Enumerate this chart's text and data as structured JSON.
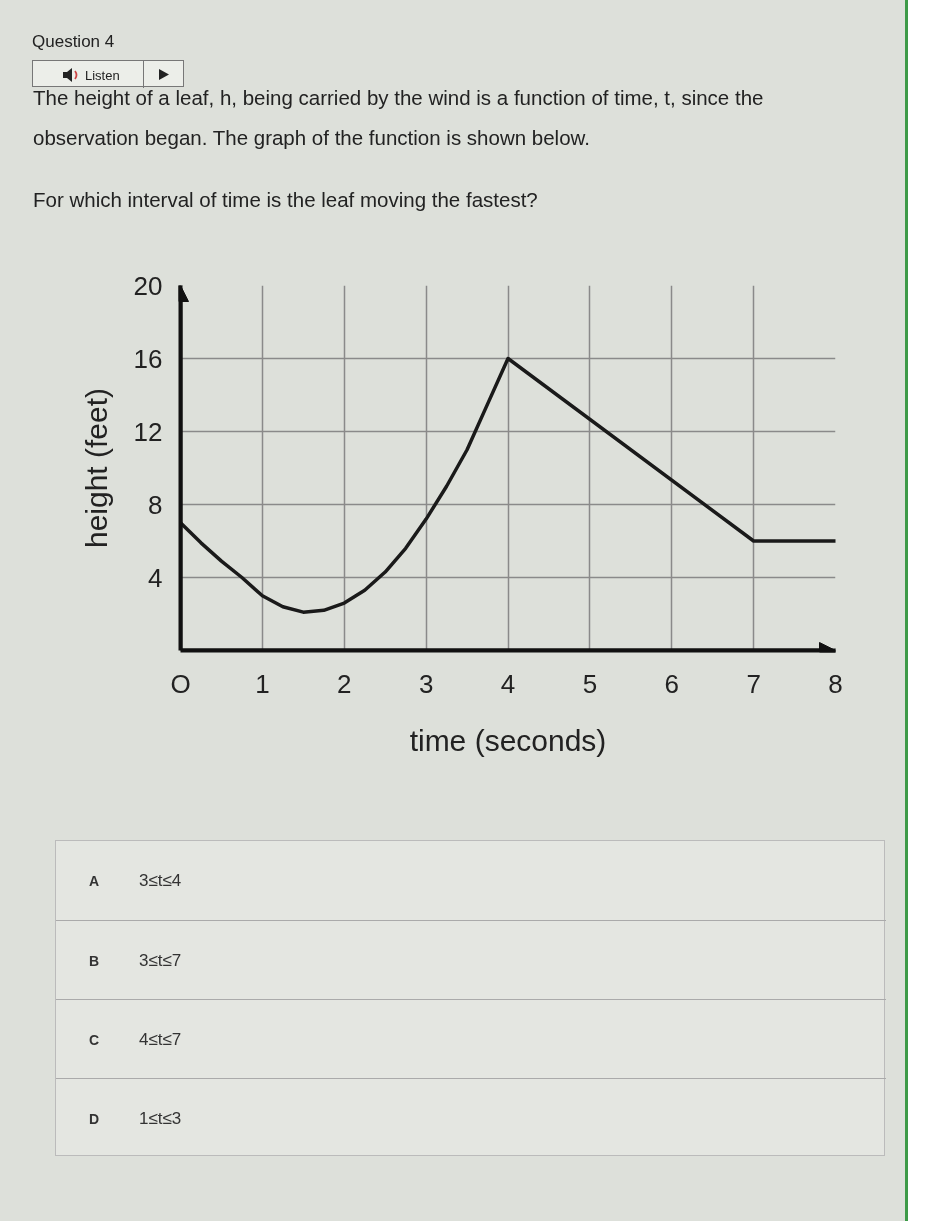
{
  "chart_data": {
    "type": "line",
    "title": "Question 4",
    "subtitle": "The height of a leaf, h, being carried by the wind is a function of time, t, since the observation began. The graph of the function is shown below.",
    "annotations": [
      "Listen",
      "For which interval of time is the leaf moving the fastest?",
      "A",
      "3≤t≤4",
      "B",
      "3≤t≤7",
      "C",
      "4≤t≤7",
      "D",
      "1≤t≤3"
    ],
    "xlabel": "time (seconds)",
    "ylabel": "height (feet)",
    "x": [
      0,
      0.25,
      0.5,
      0.75,
      1,
      1.25,
      1.5,
      1.75,
      2,
      2.25,
      2.5,
      2.75,
      3,
      3.25,
      3.5,
      3.75,
      4,
      7,
      8
    ],
    "series": [
      {
        "color": "#1a1a1a",
        "values": [
          7.0,
          5.9,
          4.9,
          4.0,
          3.0,
          2.4,
          2.1,
          2.2,
          2.6,
          3.3,
          4.3,
          5.6,
          7.2,
          9.0,
          11.0,
          13.5,
          16,
          6,
          6
        ]
      }
    ],
    "xlim": [
      0,
      8
    ],
    "ylim": [
      0,
      20
    ],
    "xticks": [
      {
        "value": 0,
        "label": "O"
      },
      1,
      2,
      3,
      4,
      5,
      6,
      7,
      8
    ],
    "yticks": [
      4,
      8,
      12,
      16,
      20
    ],
    "grid": true,
    "line_style": "solid"
  }
}
